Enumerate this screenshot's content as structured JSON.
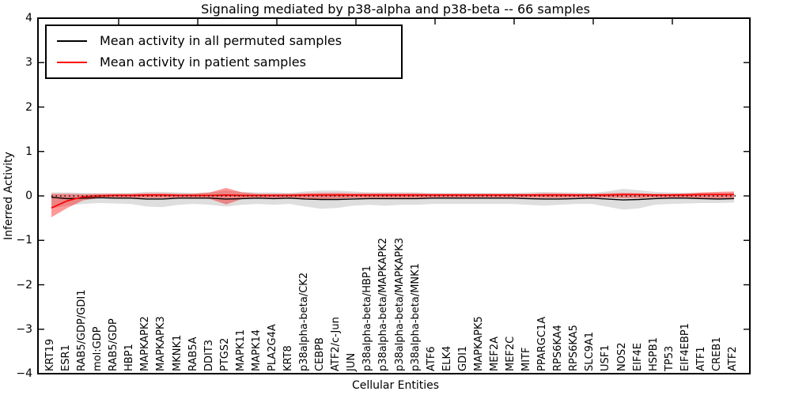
{
  "chart_data": {
    "type": "line",
    "title": "Signaling mediated by p38-alpha and p38-beta -- 66 samples",
    "xlabel": "Cellular Entities",
    "ylabel": "Inferred Activity",
    "ylim": [
      -4,
      4
    ],
    "yticks": [
      4,
      3,
      2,
      1,
      0,
      -1,
      -2,
      -3,
      -4
    ],
    "grid": false,
    "legend_position": "upper-left",
    "zero_line": 0,
    "categories": [
      "KRT19",
      "ESR1",
      "RAB5/GDP/GDI1",
      "mol:GDP",
      "RAB5/GDP",
      "HBP1",
      "MAPKAPK2",
      "MAPKAPK3",
      "MKNK1",
      "RAB5A",
      "DDIT3",
      "PTGS2",
      "MAPK11",
      "MAPK14",
      "PLA2G4A",
      "KRT8",
      "p38alpha-beta/CK2",
      "CEBPB",
      "ATF2/c-Jun",
      "JUN",
      "p38alpha-beta/HBP1",
      "p38alpha-beta/MAPKAPK2",
      "p38alpha-beta/MAPKAPK3",
      "p38alpha-beta/MNK1",
      "ATF6",
      "ELK4",
      "GDI1",
      "MAPKAPK5",
      "MEF2A",
      "MEF2C",
      "MITF",
      "PPARGC1A",
      "RPS6KA4",
      "RPS6KA5",
      "SLC9A1",
      "USF1",
      "NOS2",
      "EIF4E",
      "HSPB1",
      "TP53",
      "EIF4EBP1",
      "ATF1",
      "CREB1",
      "ATF2"
    ],
    "series": [
      {
        "name": "Mean activity in all permuted samples",
        "color": "#000000",
        "values": [
          -0.03,
          -0.06,
          -0.05,
          -0.04,
          -0.05,
          -0.05,
          -0.07,
          -0.07,
          -0.05,
          -0.05,
          -0.05,
          -0.07,
          -0.06,
          -0.05,
          -0.06,
          -0.05,
          -0.07,
          -0.08,
          -0.08,
          -0.07,
          -0.06,
          -0.06,
          -0.06,
          -0.06,
          -0.05,
          -0.05,
          -0.05,
          -0.05,
          -0.05,
          -0.05,
          -0.06,
          -0.07,
          -0.07,
          -0.06,
          -0.05,
          -0.07,
          -0.09,
          -0.08,
          -0.06,
          -0.05,
          -0.05,
          -0.06,
          -0.07,
          -0.06
        ]
      },
      {
        "name": "Mean activity in patient samples",
        "color": "#ff0000",
        "values": [
          -0.27,
          -0.11,
          -0.02,
          0.0,
          0.01,
          0.01,
          0.02,
          0.02,
          0.01,
          0.01,
          0.01,
          0.02,
          0.01,
          0.01,
          0.01,
          0.01,
          0.02,
          0.02,
          0.02,
          0.02,
          0.02,
          0.02,
          0.02,
          0.02,
          0.02,
          0.02,
          0.02,
          0.02,
          0.02,
          0.02,
          0.02,
          0.02,
          0.02,
          0.02,
          0.02,
          0.02,
          0.03,
          0.03,
          0.02,
          0.02,
          0.02,
          0.03,
          0.03,
          0.03
        ]
      }
    ],
    "bands": [
      {
        "name": "permuted-samples-range",
        "color": "rgba(0,0,0,0.13)",
        "low": [
          -0.28,
          -0.22,
          -0.18,
          -0.16,
          -0.17,
          -0.18,
          -0.24,
          -0.25,
          -0.2,
          -0.18,
          -0.2,
          -0.24,
          -0.2,
          -0.18,
          -0.2,
          -0.18,
          -0.24,
          -0.29,
          -0.27,
          -0.22,
          -0.2,
          -0.22,
          -0.2,
          -0.2,
          -0.18,
          -0.18,
          -0.18,
          -0.18,
          -0.18,
          -0.18,
          -0.2,
          -0.22,
          -0.2,
          -0.18,
          -0.18,
          -0.24,
          -0.31,
          -0.28,
          -0.2,
          -0.18,
          -0.17,
          -0.16,
          -0.16,
          -0.15
        ],
        "high": [
          0.08,
          0.08,
          0.07,
          0.06,
          0.06,
          0.07,
          0.09,
          0.09,
          0.08,
          0.07,
          0.08,
          0.12,
          0.09,
          0.08,
          0.08,
          0.07,
          0.1,
          0.12,
          0.12,
          0.1,
          0.08,
          0.08,
          0.08,
          0.08,
          0.07,
          0.07,
          0.07,
          0.07,
          0.07,
          0.07,
          0.08,
          0.09,
          0.08,
          0.08,
          0.07,
          0.1,
          0.16,
          0.13,
          0.09,
          0.08,
          0.07,
          0.07,
          0.07,
          0.07
        ]
      },
      {
        "name": "patient-samples-range",
        "color": "rgba(255,0,0,0.40)",
        "low": [
          -0.48,
          -0.27,
          -0.1,
          -0.05,
          -0.04,
          -0.04,
          -0.05,
          -0.05,
          -0.04,
          -0.04,
          -0.07,
          -0.19,
          -0.07,
          -0.04,
          -0.05,
          -0.04,
          -0.06,
          -0.07,
          -0.06,
          -0.05,
          -0.05,
          -0.05,
          -0.05,
          -0.05,
          -0.04,
          -0.04,
          -0.04,
          -0.04,
          -0.04,
          -0.04,
          -0.04,
          -0.05,
          -0.05,
          -0.04,
          -0.04,
          -0.04,
          -0.05,
          -0.05,
          -0.04,
          -0.04,
          -0.04,
          -0.05,
          -0.06,
          -0.06
        ],
        "high": [
          0.05,
          0.05,
          0.04,
          0.05,
          0.05,
          0.05,
          0.06,
          0.06,
          0.05,
          0.05,
          0.08,
          0.18,
          0.08,
          0.05,
          0.05,
          0.05,
          0.06,
          0.07,
          0.07,
          0.06,
          0.06,
          0.06,
          0.06,
          0.06,
          0.05,
          0.05,
          0.05,
          0.05,
          0.05,
          0.05,
          0.05,
          0.06,
          0.06,
          0.05,
          0.05,
          0.06,
          0.07,
          0.06,
          0.05,
          0.05,
          0.06,
          0.08,
          0.09,
          0.1
        ]
      }
    ]
  }
}
